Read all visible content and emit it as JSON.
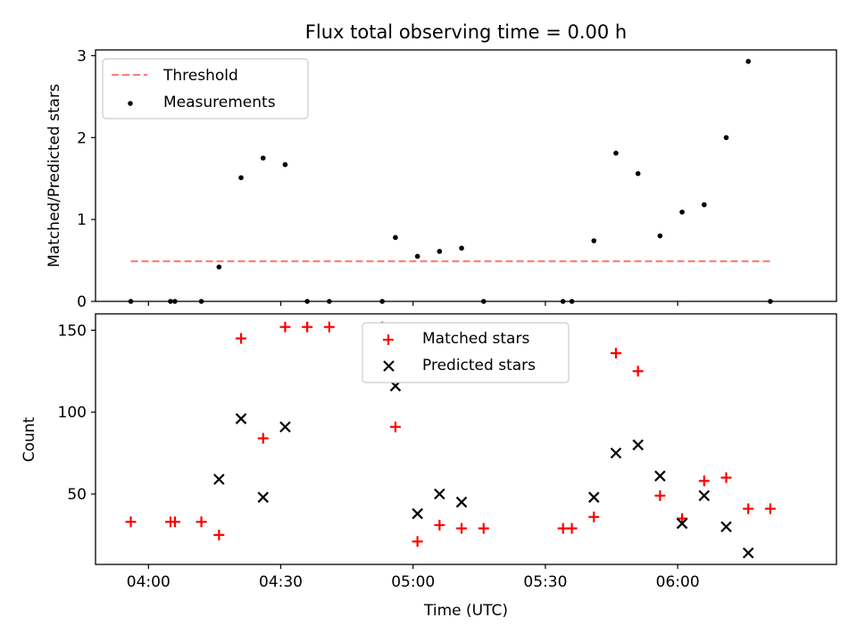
{
  "chart_data": [
    {
      "type": "scatter",
      "title": "Flux total observing time = 0.00 h",
      "xlabel": "",
      "ylabel": "Matched/Predicted stars",
      "xlim": [
        "03:48",
        "06:36"
      ],
      "ylim": [
        0,
        3.07
      ],
      "yticks": [
        0,
        1,
        2,
        3
      ],
      "grid": false,
      "legend_position": "top-left",
      "threshold": {
        "name": "Threshold",
        "value": 0.49,
        "x_range": [
          "03:56",
          "06:21"
        ],
        "color": "#ff7f7f",
        "style": "dashed"
      },
      "series": [
        {
          "name": "Measurements",
          "color": "#000000",
          "marker": "dot",
          "points": [
            [
              "03:56",
              0.0
            ],
            [
              "04:05",
              0.0
            ],
            [
              "04:06",
              0.0
            ],
            [
              "04:12",
              0.0
            ],
            [
              "04:16",
              0.42
            ],
            [
              "04:21",
              1.51
            ],
            [
              "04:26",
              1.75
            ],
            [
              "04:31",
              1.67
            ],
            [
              "04:36",
              0.0
            ],
            [
              "04:41",
              0.0
            ],
            [
              "04:53",
              0.0
            ],
            [
              "04:56",
              0.78
            ],
            [
              "05:01",
              0.55
            ],
            [
              "05:06",
              0.61
            ],
            [
              "05:11",
              0.65
            ],
            [
              "05:16",
              0.0
            ],
            [
              "05:34",
              0.0
            ],
            [
              "05:36",
              0.0
            ],
            [
              "05:41",
              0.74
            ],
            [
              "05:46",
              1.81
            ],
            [
              "05:51",
              1.56
            ],
            [
              "05:56",
              0.8
            ],
            [
              "06:01",
              1.09
            ],
            [
              "06:06",
              1.18
            ],
            [
              "06:11",
              2.0
            ],
            [
              "06:16",
              2.93
            ],
            [
              "06:21",
              0.0
            ]
          ]
        }
      ]
    },
    {
      "type": "scatter",
      "title": "",
      "xlabel": "Time (UTC)",
      "ylabel": "Count",
      "xlim": [
        "03:48",
        "06:36"
      ],
      "ylim": [
        7,
        160
      ],
      "xticks": [
        "04:00",
        "04:30",
        "05:00",
        "05:30",
        "06:00"
      ],
      "yticks": [
        50,
        100,
        150
      ],
      "grid": false,
      "legend_position": "top-center",
      "series": [
        {
          "name": "Matched stars",
          "color": "#ff0000",
          "marker": "plus",
          "points": [
            [
              "03:56",
              33
            ],
            [
              "04:05",
              33
            ],
            [
              "04:06",
              33
            ],
            [
              "04:12",
              33
            ],
            [
              "04:16",
              25
            ],
            [
              "04:21",
              145
            ],
            [
              "04:26",
              84
            ],
            [
              "04:31",
              152
            ],
            [
              "04:36",
              152
            ],
            [
              "04:41",
              152
            ],
            [
              "04:53",
              152
            ],
            [
              "04:56",
              91
            ],
            [
              "05:01",
              21
            ],
            [
              "05:06",
              31
            ],
            [
              "05:11",
              29
            ],
            [
              "05:16",
              29
            ],
            [
              "05:34",
              29
            ],
            [
              "05:36",
              29
            ],
            [
              "05:41",
              36
            ],
            [
              "05:46",
              136
            ],
            [
              "05:51",
              125
            ],
            [
              "05:56",
              49
            ],
            [
              "06:01",
              35
            ],
            [
              "06:06",
              58
            ],
            [
              "06:11",
              60
            ],
            [
              "06:16",
              41
            ],
            [
              "06:21",
              41
            ]
          ]
        },
        {
          "name": "Predicted stars",
          "color": "#000000",
          "marker": "x",
          "points": [
            [
              "04:16",
              59
            ],
            [
              "04:21",
              96
            ],
            [
              "04:26",
              48
            ],
            [
              "04:31",
              91
            ],
            [
              "04:56",
              116
            ],
            [
              "05:01",
              38
            ],
            [
              "05:06",
              50
            ],
            [
              "05:11",
              45
            ],
            [
              "05:41",
              48
            ],
            [
              "05:46",
              75
            ],
            [
              "05:51",
              80
            ],
            [
              "05:56",
              61
            ],
            [
              "06:01",
              32
            ],
            [
              "06:06",
              49
            ],
            [
              "06:11",
              30
            ],
            [
              "06:16",
              14
            ]
          ]
        }
      ]
    }
  ]
}
